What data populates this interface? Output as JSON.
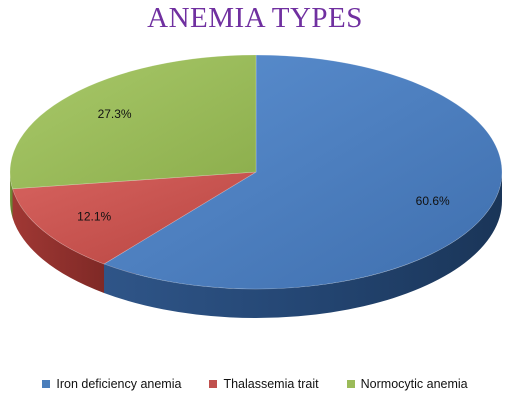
{
  "title": "ANEMIA TYPES",
  "colors": {
    "title": "#7030a0",
    "Iron deficiency anemia": "#4a7ebb",
    "Thalassemia trait": "#c0504d",
    "Normocytic anemia": "#9bbb59"
  },
  "chart_data": {
    "type": "pie",
    "style": "3d",
    "title": "ANEMIA TYPES",
    "legend_position": "bottom",
    "slices": [
      {
        "label": "Iron deficiency anemia",
        "value": 60.6,
        "display": "60.6%"
      },
      {
        "label": "Thalassemia trait",
        "value": 12.1,
        "display": "12.1%"
      },
      {
        "label": "Normocytic anemia",
        "value": 27.3,
        "display": "27.3%"
      }
    ]
  }
}
